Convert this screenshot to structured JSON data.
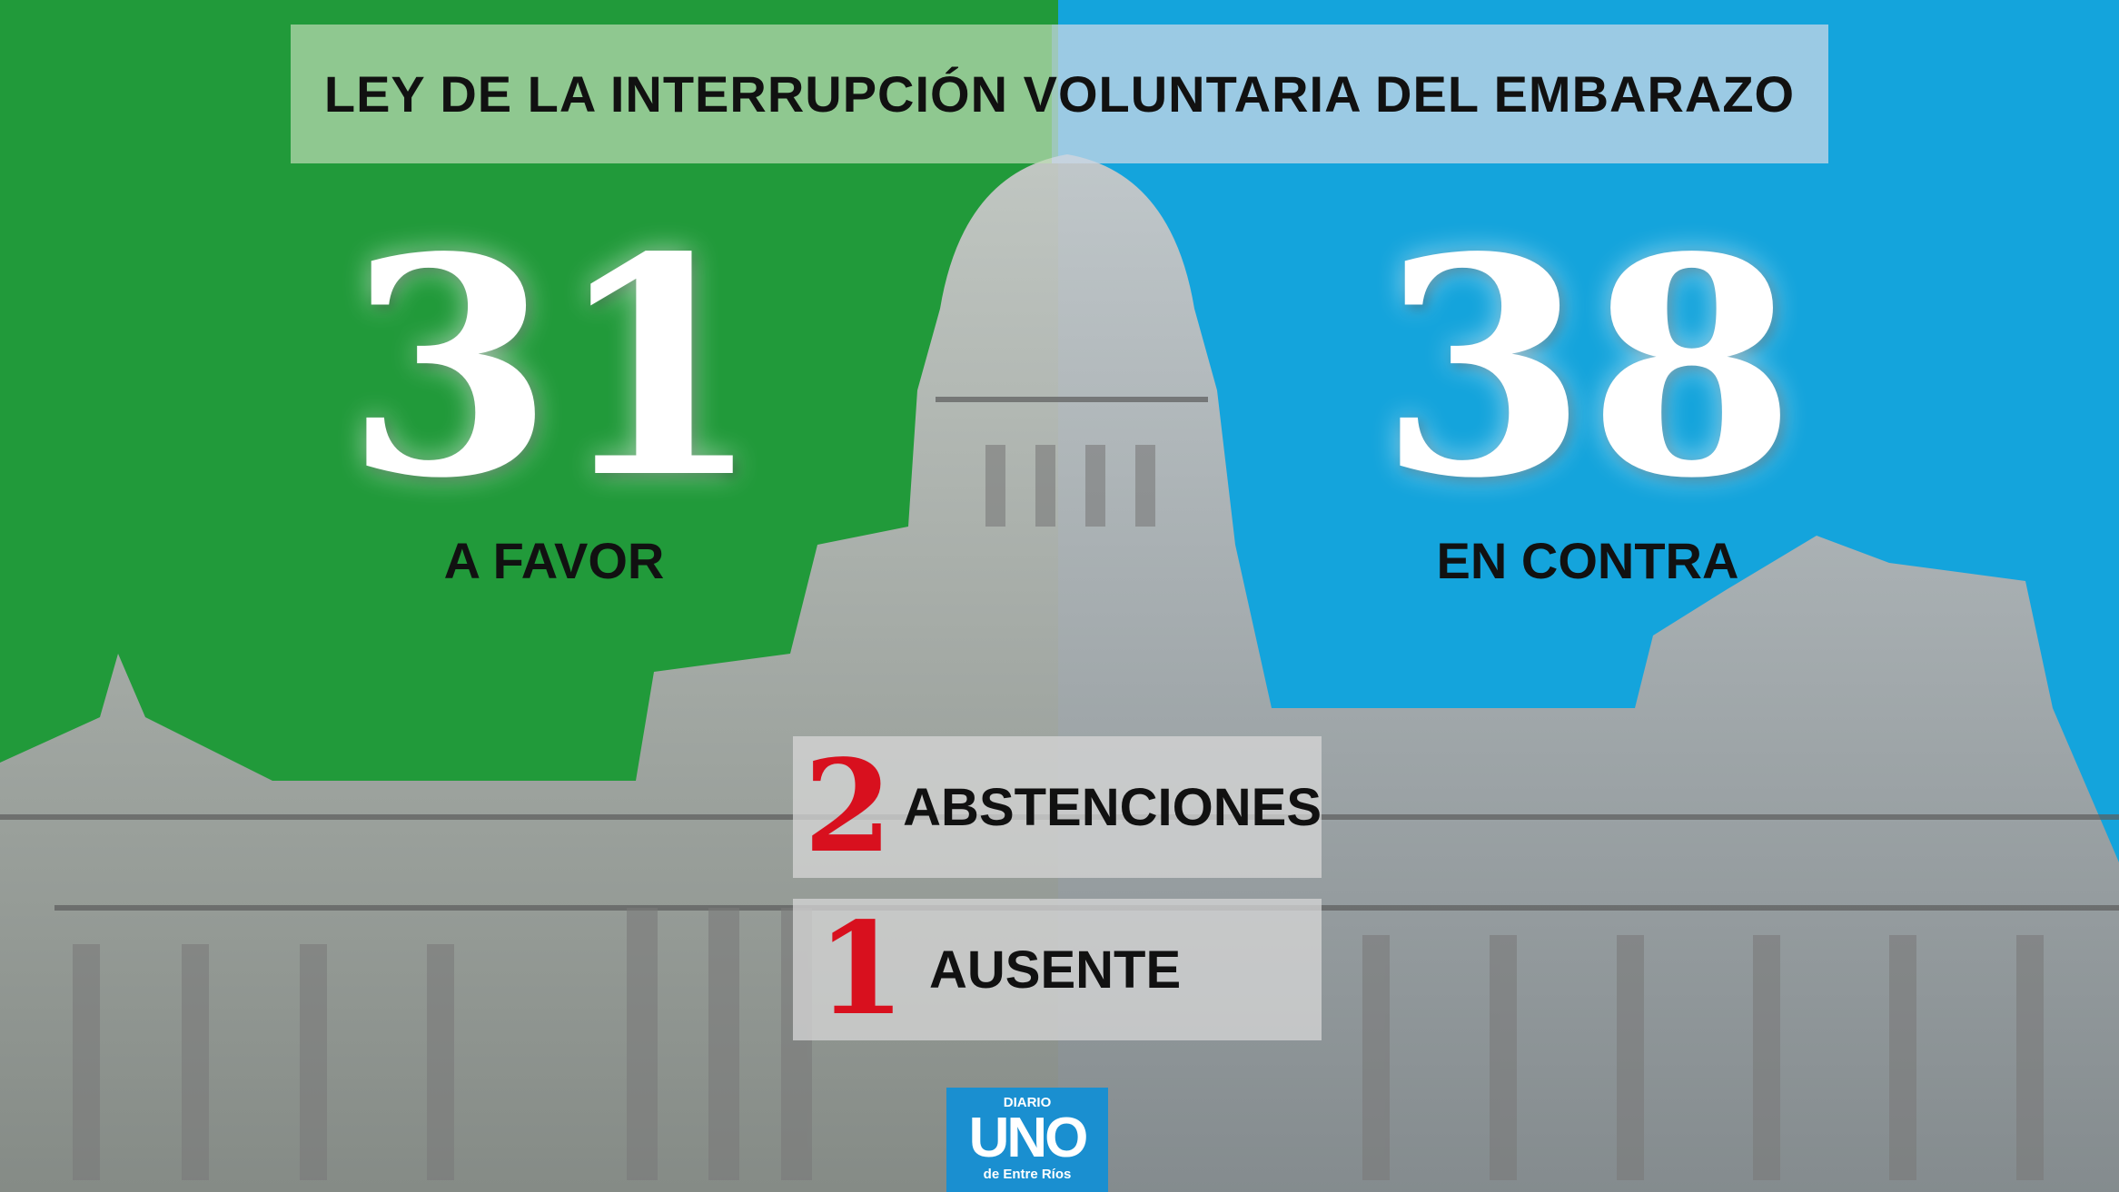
{
  "header": {
    "title": "LEY DE LA INTERRUPCIÓN VOLUNTARIA DEL EMBARAZO"
  },
  "results": {
    "favor": {
      "value": 31,
      "label": "A FAVOR"
    },
    "contra": {
      "value": 38,
      "label": "EN CONTRA"
    },
    "abstenciones": {
      "value": 2,
      "label": "ABSTENCIONES"
    },
    "ausente": {
      "value": 1,
      "label": "AUSENTE"
    }
  },
  "logo": {
    "top": "DIARIO",
    "name": "UNO",
    "bottom": "de Entre Ríos"
  }
}
